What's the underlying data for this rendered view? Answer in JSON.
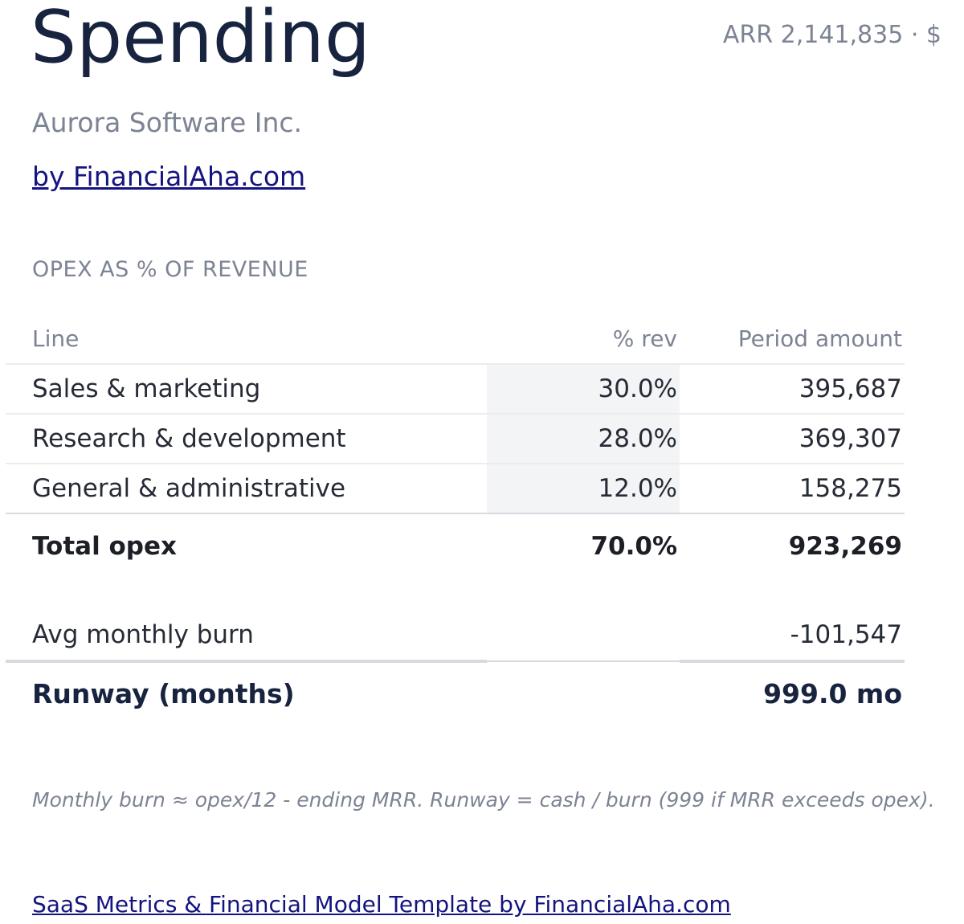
{
  "header": {
    "title": "Spending",
    "arr_badge": "ARR 2,141,835 · $",
    "company": "Aurora Software Inc.",
    "byline": "by FinancialAha.com"
  },
  "opex": {
    "section_title": "OPEX AS % OF REVENUE",
    "columns": [
      "Line",
      "% rev",
      "Period amount"
    ],
    "rows": [
      {
        "line": "Sales & marketing",
        "pct": "30.0%",
        "amount": "395,687"
      },
      {
        "line": "Research & development",
        "pct": "28.0%",
        "amount": "369,307"
      },
      {
        "line": "General & administrative",
        "pct": "12.0%",
        "amount": "158,275"
      }
    ],
    "total": {
      "line": "Total opex",
      "pct": "70.0%",
      "amount": "923,269"
    },
    "burn": {
      "line": "Avg monthly burn",
      "amount": "-101,547"
    },
    "runway": {
      "line": "Runway (months)",
      "amount": "999.0 mo"
    }
  },
  "footnote": "Monthly burn ≈ opex/12 - ending MRR. Runway = cash / burn (999 if MRR exceeds opex).",
  "footer": {
    "link_text": "SaaS Metrics & Financial Model Template by FinancialAha.com"
  },
  "colors": {
    "title": "#17233f",
    "muted": "#7c8393",
    "link": "#141480",
    "highlight_column": "#f3f4f6"
  }
}
